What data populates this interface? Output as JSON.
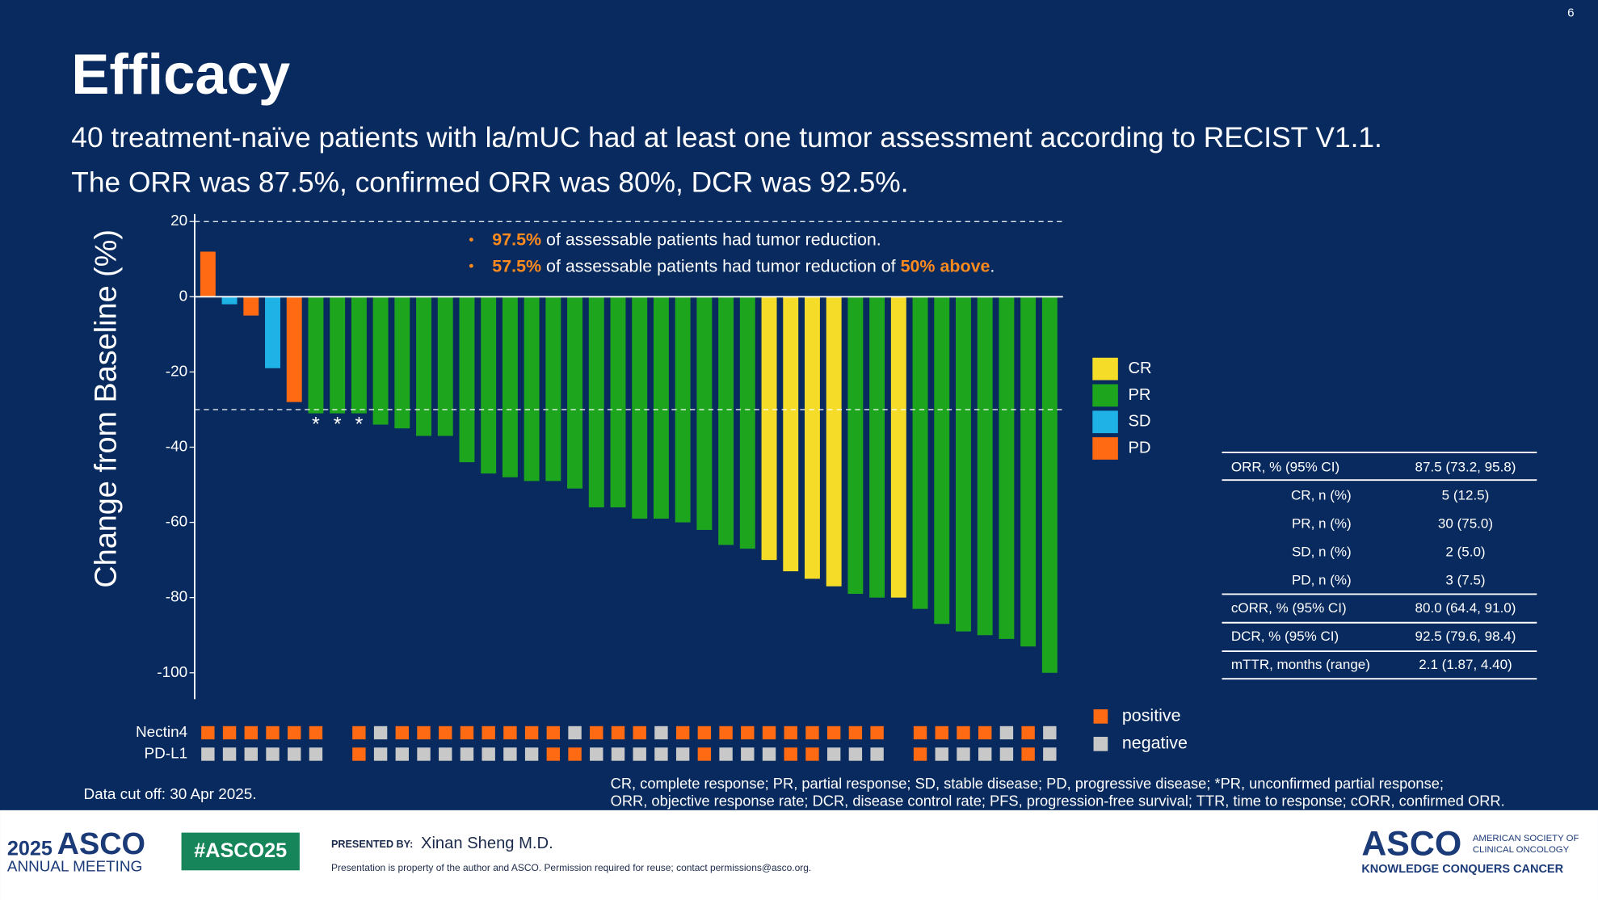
{
  "page_number": "6",
  "title": "Efficacy",
  "subtitle_lines": [
    "40 treatment-naïve patients with la/mUC had at least one tumor assessment according to RECIST V1.1.",
    "The ORR was 87.5%, confirmed ORR was 80%, DCR was 92.5%."
  ],
  "chart_data": {
    "type": "bar",
    "y_label": "Change from Baseline (%)",
    "ylim": [
      -107,
      22
    ],
    "yticks": [
      20,
      0,
      -20,
      -40,
      -60,
      -80,
      -100
    ],
    "ref_lines": [
      20,
      -30
    ],
    "values": [
      12,
      -2,
      -5,
      -19,
      -28,
      -31,
      -31,
      -31,
      -34,
      -35,
      -37,
      -37,
      -44,
      -47,
      -48,
      -49,
      -49,
      -51,
      -56,
      -56,
      -59,
      -59,
      -60,
      -62,
      -66,
      -67,
      -70,
      -73,
      -75,
      -77,
      -79,
      -80,
      -80,
      -83,
      -87,
      -89,
      -90,
      -91,
      -93,
      -100
    ],
    "response": [
      "PD",
      "SD",
      "PD",
      "SD",
      "PD",
      "PR",
      "PR",
      "PR",
      "PR",
      "PR",
      "PR",
      "PR",
      "PR",
      "PR",
      "PR",
      "PR",
      "PR",
      "PR",
      "PR",
      "PR",
      "PR",
      "PR",
      "PR",
      "PR",
      "PR",
      "PR",
      "CR",
      "CR",
      "CR",
      "CR",
      "PR",
      "PR",
      "CR",
      "PR",
      "PR",
      "PR",
      "PR",
      "PR",
      "PR",
      "PR"
    ],
    "bar_markers": [
      null,
      null,
      null,
      null,
      null,
      "*",
      "*",
      "*",
      null,
      null,
      null,
      null,
      null,
      null,
      null,
      null,
      null,
      null,
      null,
      null,
      null,
      null,
      null,
      null,
      null,
      null,
      null,
      null,
      null,
      null,
      null,
      null,
      null,
      null,
      null,
      null,
      null,
      null,
      null,
      null
    ],
    "legend": [
      {
        "name": "CR",
        "color": "#f5dc28"
      },
      {
        "name": "PR",
        "color": "#1ea51e"
      },
      {
        "name": "SD",
        "color": "#1fb2e6"
      },
      {
        "name": "PD",
        "color": "#ff6a13"
      }
    ],
    "annotations": [
      [
        {
          "text": "97.5%",
          "color": "#ff8a1e"
        },
        {
          "text": " of assessable patients had tumor reduction.",
          "color": "#ffffff"
        }
      ],
      [
        {
          "text": "57.5%",
          "color": "#ff8a1e"
        },
        {
          "text": " of assessable patients had tumor reduction of ",
          "color": "#ffffff"
        },
        {
          "text": "50% above",
          "color": "#ff8a1e"
        },
        {
          "text": ".",
          "color": "#ffffff"
        }
      ]
    ],
    "biomarkers": [
      {
        "name": "Nectin4",
        "status": [
          "positive",
          "positive",
          "positive",
          "positive",
          "positive",
          "positive",
          null,
          "positive",
          "negative",
          "positive",
          "positive",
          "positive",
          "positive",
          "positive",
          "positive",
          "positive",
          "positive",
          "negative",
          "positive",
          "positive",
          "positive",
          "negative",
          "positive",
          "positive",
          "positive",
          "positive",
          "positive",
          "positive",
          "positive",
          "positive",
          "positive",
          "positive",
          null,
          "positive",
          "positive",
          "positive",
          "positive",
          "negative",
          "positive",
          "negative"
        ]
      },
      {
        "name": "PD-L1",
        "status": [
          "negative",
          "negative",
          "negative",
          "negative",
          "negative",
          "negative",
          null,
          "positive",
          "negative",
          "negative",
          "negative",
          "negative",
          "negative",
          "negative",
          "negative",
          "negative",
          "positive",
          "positive",
          "negative",
          "negative",
          "negative",
          "negative",
          "negative",
          "positive",
          "negative",
          "negative",
          "negative",
          "positive",
          "positive",
          "negative",
          "negative",
          "negative",
          null,
          "positive",
          "negative",
          "negative",
          "negative",
          "negative",
          "positive",
          "negative"
        ]
      }
    ],
    "biomarker_legend": [
      {
        "name": "positive",
        "color": "#ff6a13"
      },
      {
        "name": "negative",
        "color": "#c8c8c8"
      }
    ]
  },
  "table": {
    "rows": [
      [
        "ORR, % (95% CI)",
        "87.5 (73.2, 95.8)"
      ],
      [
        "CR, n (%)",
        "5 (12.5)"
      ],
      [
        "PR, n (%)",
        "30 (75.0)"
      ],
      [
        "SD, n (%)",
        "2 (5.0)"
      ],
      [
        "PD, n (%)",
        "3 (7.5)"
      ],
      [
        "cORR, % (95% CI)",
        "80.0 (64.4, 91.0)"
      ],
      [
        "DCR, % (95% CI)",
        "92.5 (79.6, 98.4)"
      ],
      [
        "mTTR, months (range)",
        "2.1 (1.87, 4.40)"
      ]
    ]
  },
  "data_cutoff": "Data cut off: 30 Apr 2025.",
  "footnotes": [
    "CR, complete response; PR, partial response; SD, stable disease; PD, progressive disease; *PR, unconfirmed partial response;",
    "ORR, objective response rate; DCR, disease control rate; PFS, progression-free survival; TTR, time to response; cORR, confirmed ORR."
  ],
  "footer": {
    "year": "2025",
    "asco": "ASCO",
    "meeting": "ANNUAL MEETING",
    "hashtag": "#ASCO25",
    "presented_by": "PRESENTED BY:",
    "presenter": "Xinan Sheng M.D.",
    "notice": "Presentation is property of the author and ASCO. Permission required for reuse; contact permissions@asco.org.",
    "logo": "ASCO",
    "society_1": "AMERICAN SOCIETY OF",
    "society_2": "CLINICAL ONCOLOGY",
    "tagline": "KNOWLEDGE CONQUERS CANCER"
  }
}
